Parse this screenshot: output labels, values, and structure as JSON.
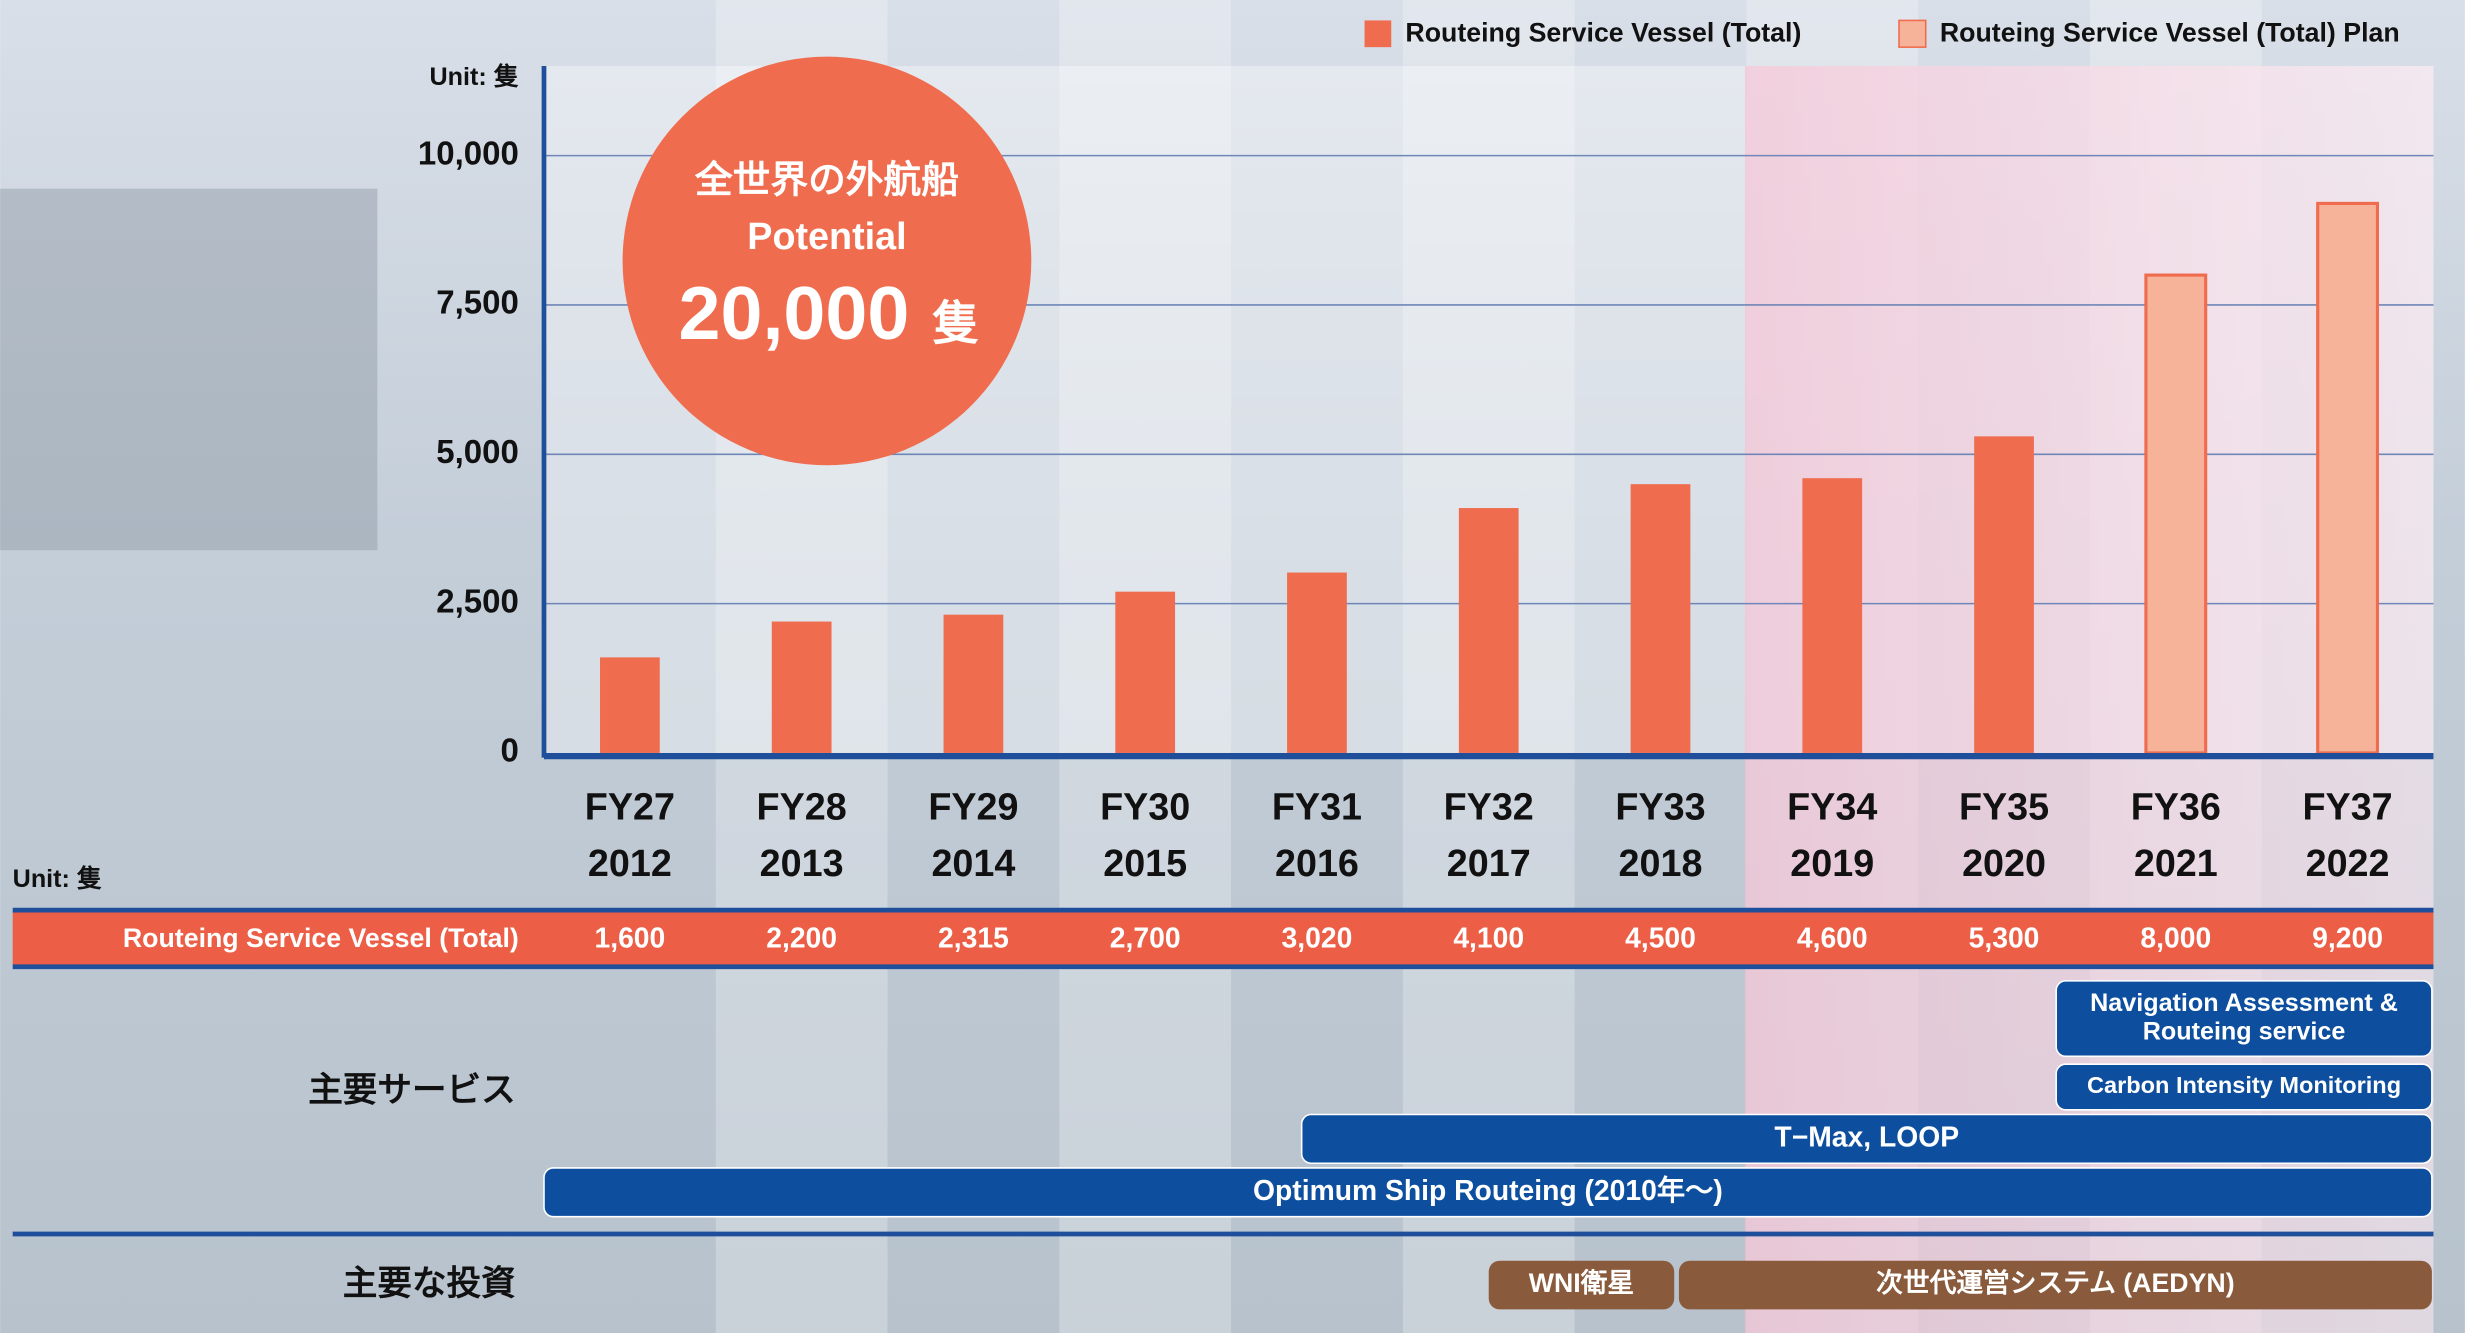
{
  "chart_data": {
    "type": "bar",
    "unit": "Unit: 隻",
    "categories": [
      "FY27",
      "FY28",
      "FY29",
      "FY30",
      "FY31",
      "FY32",
      "FY33",
      "FY34",
      "FY35",
      "FY36",
      "FY37"
    ],
    "years": [
      "2012",
      "2013",
      "2014",
      "2015",
      "2016",
      "2017",
      "2018",
      "2019",
      "2020",
      "2021",
      "2022"
    ],
    "series": [
      {
        "name": "Routeing Service Vessel (Total)",
        "color": "#ef6c4e",
        "values": [
          1600,
          2200,
          2315,
          2700,
          3020,
          4100,
          4500,
          4600,
          5300,
          null,
          null
        ]
      },
      {
        "name": "Routeing Service Vessel (Total) Plan",
        "color": "#f7b399",
        "values": [
          null,
          null,
          null,
          null,
          null,
          null,
          null,
          null,
          null,
          8000,
          9200
        ]
      }
    ],
    "ylim": [
      0,
      11500
    ],
    "yticks": [
      0,
      {
        "value": 2500,
        "label": "2,500"
      },
      {
        "value": 5000,
        "label": "5,000"
      },
      {
        "value": 7500,
        "label": "7,500"
      },
      {
        "value": 10000,
        "label": "10,000"
      }
    ],
    "grid": true,
    "callout": {
      "line1": "全世界の外航船",
      "line2": "Potential",
      "value": "20,000",
      "unit": "隻"
    }
  },
  "table": {
    "unit": "Unit: 隻",
    "label": "Routeing Service Vessel (Total)",
    "cells": [
      "1,600",
      "2,200",
      "2,315",
      "2,700",
      "3,020",
      "4,100",
      "4,500",
      "4,600",
      "5,300",
      "8,000",
      "9,200"
    ]
  },
  "services": {
    "label": "主要サービス",
    "items": [
      [
        "Navigation Assessment &",
        "Routeing service"
      ],
      [
        "Carbon Intensity Monitoring"
      ],
      [
        "T−Max, LOOP"
      ],
      [
        "Optimum Ship Routeing (2010年～)"
      ]
    ]
  },
  "investments": {
    "label": "主要な投資",
    "items": [
      [
        "WNI衛星"
      ],
      [
        "次世代運営システム (AEDYN)"
      ]
    ]
  }
}
